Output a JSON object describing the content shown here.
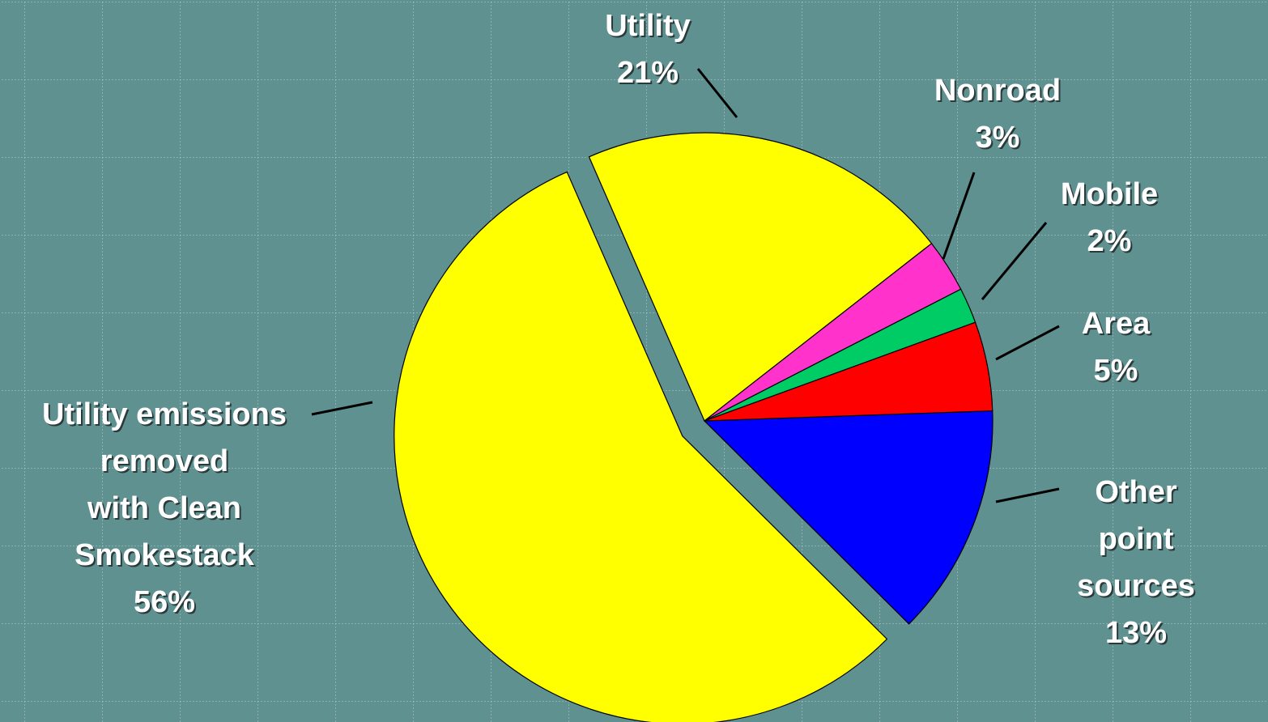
{
  "chart_data": {
    "type": "pie",
    "categories": [
      "Other\npoint sources",
      "Utility emissions\nremoved\nwith Clean\nSmokestack",
      "Utility",
      "Nonroad",
      "Mobile",
      "Area"
    ],
    "values": [
      13,
      56,
      21,
      3,
      2,
      5
    ],
    "value_labels": [
      "13%",
      "56%",
      "21%",
      "3%",
      "2%",
      "5%"
    ],
    "colors": [
      "#0000ff",
      "#ffff00",
      "#ffff00",
      "#ff33cc",
      "#00cc66",
      "#ff0000"
    ]
  }
}
